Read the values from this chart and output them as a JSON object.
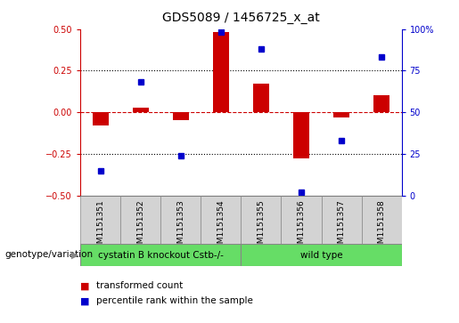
{
  "title": "GDS5089 / 1456725_x_at",
  "samples": [
    "GSM1151351",
    "GSM1151352",
    "GSM1151353",
    "GSM1151354",
    "GSM1151355",
    "GSM1151356",
    "GSM1151357",
    "GSM1151358"
  ],
  "bar_values": [
    -0.08,
    0.03,
    -0.05,
    0.48,
    0.17,
    -0.28,
    -0.03,
    0.1
  ],
  "dot_values": [
    15,
    68,
    24,
    98,
    88,
    2,
    33,
    83
  ],
  "group1_label": "cystatin B knockout Cstb-/-",
  "group2_label": "wild type",
  "group1_count": 4,
  "group2_count": 4,
  "genotype_label": "genotype/variation",
  "legend1": "transformed count",
  "legend2": "percentile rank within the sample",
  "bar_color": "#cc0000",
  "dot_color": "#0000cc",
  "group_color": "#66dd66",
  "sample_box_color": "#d3d3d3",
  "ylim_left": [
    -0.5,
    0.5
  ],
  "ylim_right": [
    0,
    100
  ],
  "yticks_left": [
    -0.5,
    -0.25,
    0,
    0.25,
    0.5
  ],
  "yticks_right": [
    0,
    25,
    50,
    75,
    100
  ],
  "hlines": [
    -0.25,
    0.25
  ],
  "title_fontsize": 10,
  "tick_fontsize": 7,
  "label_fontsize": 7.5
}
